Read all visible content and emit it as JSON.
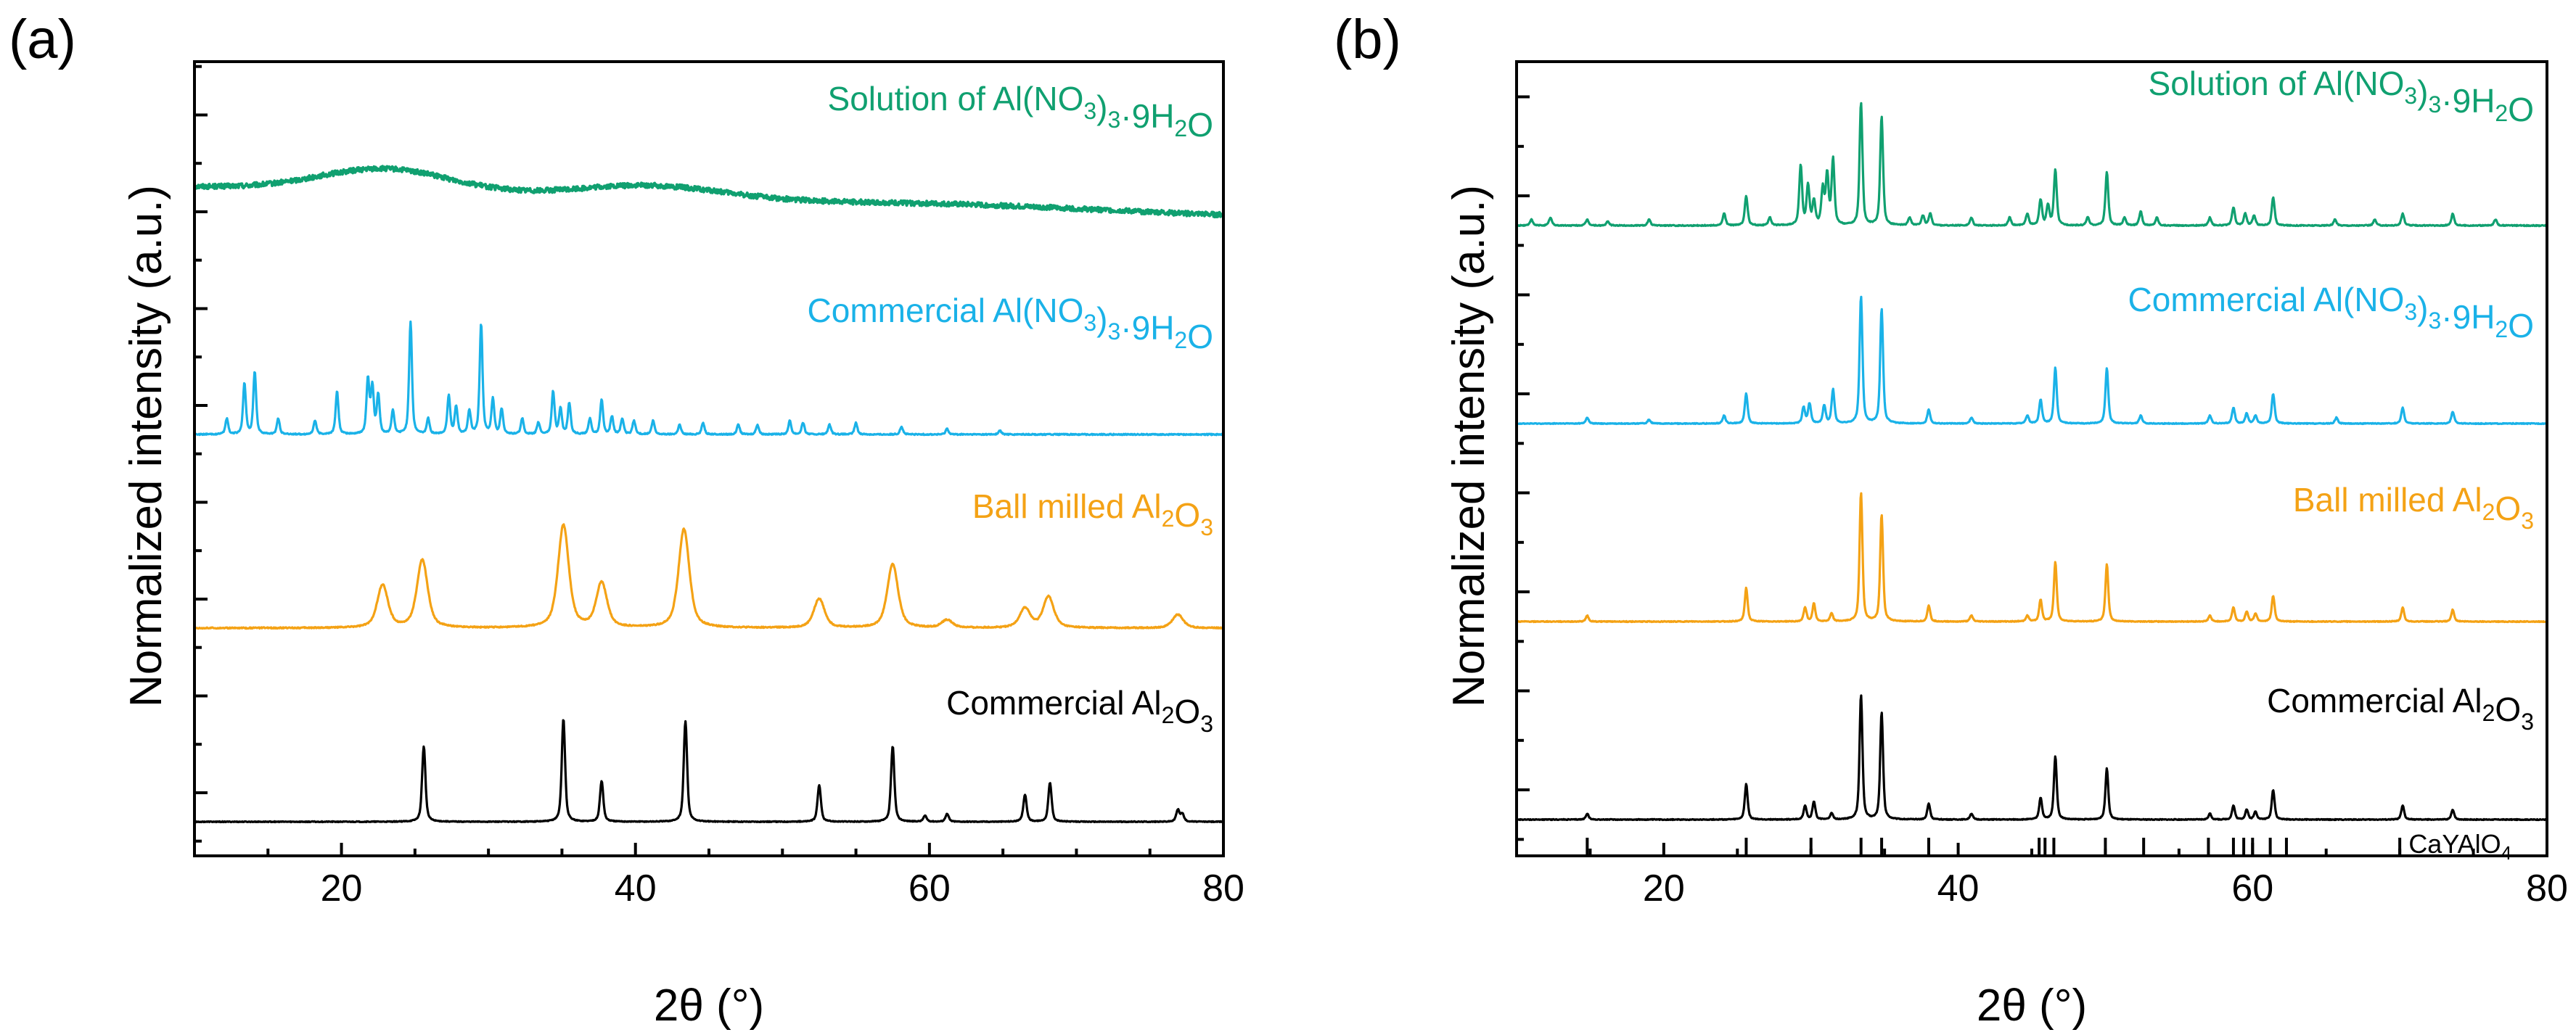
{
  "chart_data": [
    {
      "type": "line",
      "panel_label": "(a)",
      "xlabel": "2θ (°)",
      "ylabel": "Normalized intensity (a.u.)",
      "xlim": [
        10,
        80
      ],
      "xticks": [
        20,
        40,
        60,
        80
      ],
      "yticks_labeled": false,
      "series": [
        {
          "name": "Solution of Al(NO3)3·9H2O",
          "label_main": "Solution of Al(NO",
          "label_sub1": "3",
          "label_mid": ")",
          "label_sub2": "3",
          "label_tail": "·9H",
          "label_sub3": "2",
          "label_end": "O",
          "color": "#10a070",
          "kind": "amorphous",
          "offset": 3.0,
          "baseline_start": 0.28,
          "baseline_end": 0.13,
          "humps": [
            {
              "center": 23,
              "width": 4.5,
              "height": 0.12
            },
            {
              "center": 41,
              "width": 5.0,
              "height": 0.07
            },
            {
              "center": 62,
              "width": 10.0,
              "height": 0.02
            }
          ],
          "noise": 0.025
        },
        {
          "name": "Commercial Al(NO3)3·9H2O",
          "label_main": "Commercial Al(NO",
          "label_sub1": "3",
          "label_mid": ")",
          "label_sub2": "3",
          "label_tail": "·9H",
          "label_sub3": "2",
          "label_end": "O",
          "color": "#1ab2e8",
          "kind": "peaks",
          "offset": 2.0,
          "peak_width": 0.12,
          "noise": 0.006,
          "peaks": [
            [
              12.2,
              0.08
            ],
            [
              13.4,
              0.26
            ],
            [
              14.1,
              0.32
            ],
            [
              15.7,
              0.08
            ],
            [
              18.2,
              0.07
            ],
            [
              19.7,
              0.22
            ],
            [
              21.8,
              0.28
            ],
            [
              22.1,
              0.24
            ],
            [
              22.5,
              0.2
            ],
            [
              23.5,
              0.12
            ],
            [
              24.7,
              0.58
            ],
            [
              25.9,
              0.08
            ],
            [
              27.3,
              0.2
            ],
            [
              27.8,
              0.14
            ],
            [
              28.7,
              0.12
            ],
            [
              29.5,
              0.57
            ],
            [
              30.3,
              0.18
            ],
            [
              30.9,
              0.13
            ],
            [
              32.3,
              0.08
            ],
            [
              33.4,
              0.06
            ],
            [
              34.4,
              0.22
            ],
            [
              34.9,
              0.13
            ],
            [
              35.5,
              0.16
            ],
            [
              36.9,
              0.08
            ],
            [
              37.7,
              0.18
            ],
            [
              38.4,
              0.09
            ],
            [
              39.1,
              0.08
            ],
            [
              39.9,
              0.07
            ],
            [
              41.2,
              0.07
            ],
            [
              43.0,
              0.05
            ],
            [
              44.6,
              0.06
            ],
            [
              47.0,
              0.05
            ],
            [
              48.3,
              0.05
            ],
            [
              50.5,
              0.07
            ],
            [
              51.4,
              0.06
            ],
            [
              53.2,
              0.05
            ],
            [
              55.0,
              0.06
            ],
            [
              58.1,
              0.04
            ],
            [
              61.2,
              0.03
            ],
            [
              64.8,
              0.02
            ]
          ]
        },
        {
          "name": "Ball milled Al2O3",
          "label_main": "Ball milled Al",
          "label_sub1": "2",
          "label_mid": "O",
          "label_sub2": "3",
          "color": "#f4a215",
          "kind": "peaks",
          "offset": 1.0,
          "peak_width": 0.45,
          "noise": 0.006,
          "peaks": [
            [
              22.8,
              0.22
            ],
            [
              25.5,
              0.35
            ],
            [
              35.1,
              0.53
            ],
            [
              37.7,
              0.23
            ],
            [
              43.3,
              0.51
            ],
            [
              52.5,
              0.15
            ],
            [
              57.5,
              0.33
            ],
            [
              61.2,
              0.04
            ],
            [
              66.5,
              0.1
            ],
            [
              68.1,
              0.16
            ],
            [
              76.9,
              0.07
            ]
          ]
        },
        {
          "name": "Commercial Al2O3",
          "label_main": "Commercial Al",
          "label_sub1": "2",
          "label_mid": "O",
          "label_sub2": "3",
          "color": "#000000",
          "kind": "peaks",
          "offset": 0.0,
          "peak_width": 0.14,
          "noise": 0.004,
          "peaks": [
            [
              25.6,
              0.39
            ],
            [
              35.1,
              0.53
            ],
            [
              37.7,
              0.21
            ],
            [
              43.4,
              0.52
            ],
            [
              52.5,
              0.19
            ],
            [
              57.5,
              0.39
            ],
            [
              59.7,
              0.03
            ],
            [
              61.2,
              0.04
            ],
            [
              66.5,
              0.14
            ],
            [
              68.2,
              0.2
            ],
            [
              76.9,
              0.06
            ],
            [
              77.2,
              0.04
            ]
          ]
        }
      ]
    },
    {
      "type": "line",
      "panel_label": "(b)",
      "xlabel": "2θ (°)",
      "ylabel": "Normalized intensity (a.u.)",
      "xlim": [
        10,
        80
      ],
      "xticks": [
        20,
        40,
        60,
        80
      ],
      "yticks_labeled": false,
      "series": [
        {
          "name": "Solution of Al(NO3)3·9H2O",
          "label_main": "Solution of Al(NO",
          "label_sub1": "3",
          "label_mid": ")",
          "label_sub2": "3",
          "label_tail": "·9H",
          "label_sub3": "2",
          "label_end": "O",
          "color": "#10a070",
          "kind": "peaks",
          "offset": 3.0,
          "peak_width": 0.12,
          "noise": 0.005,
          "peaks": [
            [
              11.0,
              0.03
            ],
            [
              12.3,
              0.04
            ],
            [
              14.8,
              0.03
            ],
            [
              16.2,
              0.02
            ],
            [
              19.0,
              0.03
            ],
            [
              24.1,
              0.06
            ],
            [
              25.6,
              0.15
            ],
            [
              27.2,
              0.04
            ],
            [
              29.3,
              0.3
            ],
            [
              29.8,
              0.2
            ],
            [
              30.2,
              0.12
            ],
            [
              30.8,
              0.18
            ],
            [
              31.1,
              0.25
            ],
            [
              31.5,
              0.33
            ],
            [
              33.4,
              0.62
            ],
            [
              34.8,
              0.55
            ],
            [
              36.7,
              0.04
            ],
            [
              37.6,
              0.05
            ],
            [
              38.1,
              0.06
            ],
            [
              40.9,
              0.04
            ],
            [
              43.5,
              0.04
            ],
            [
              44.7,
              0.06
            ],
            [
              45.6,
              0.13
            ],
            [
              46.1,
              0.1
            ],
            [
              46.6,
              0.28
            ],
            [
              48.8,
              0.04
            ],
            [
              50.1,
              0.27
            ],
            [
              51.3,
              0.04
            ],
            [
              52.4,
              0.07
            ],
            [
              53.5,
              0.04
            ],
            [
              57.1,
              0.04
            ],
            [
              58.7,
              0.09
            ],
            [
              59.5,
              0.06
            ],
            [
              60.1,
              0.05
            ],
            [
              61.4,
              0.14
            ],
            [
              65.6,
              0.03
            ],
            [
              68.3,
              0.03
            ],
            [
              70.2,
              0.06
            ],
            [
              73.6,
              0.06
            ],
            [
              76.5,
              0.03
            ]
          ]
        },
        {
          "name": "Commercial Al(NO3)3·9H2O",
          "label_main": "Commercial Al(NO",
          "label_sub1": "3",
          "label_mid": ")",
          "label_sub2": "3",
          "label_tail": "·9H",
          "label_sub3": "2",
          "label_end": "O",
          "color": "#1ab2e8",
          "kind": "peaks",
          "offset": 2.0,
          "peak_width": 0.12,
          "noise": 0.004,
          "peaks": [
            [
              14.8,
              0.03
            ],
            [
              19.0,
              0.02
            ],
            [
              24.1,
              0.04
            ],
            [
              25.6,
              0.15
            ],
            [
              29.5,
              0.08
            ],
            [
              29.9,
              0.1
            ],
            [
              30.9,
              0.09
            ],
            [
              31.5,
              0.17
            ],
            [
              33.4,
              0.64
            ],
            [
              34.8,
              0.58
            ],
            [
              38.0,
              0.07
            ],
            [
              40.9,
              0.03
            ],
            [
              44.7,
              0.04
            ],
            [
              45.6,
              0.12
            ],
            [
              46.6,
              0.28
            ],
            [
              50.1,
              0.28
            ],
            [
              52.4,
              0.04
            ],
            [
              57.1,
              0.04
            ],
            [
              58.7,
              0.08
            ],
            [
              59.6,
              0.05
            ],
            [
              60.2,
              0.04
            ],
            [
              61.4,
              0.15
            ],
            [
              65.7,
              0.03
            ],
            [
              70.2,
              0.08
            ],
            [
              73.6,
              0.06
            ]
          ]
        },
        {
          "name": "Ball milled Al2O3",
          "label_main": "Ball milled Al",
          "label_sub1": "2",
          "label_mid": "O",
          "label_sub2": "3",
          "color": "#f4a215",
          "kind": "peaks",
          "offset": 1.0,
          "peak_width": 0.12,
          "noise": 0.004,
          "peaks": [
            [
              14.8,
              0.03
            ],
            [
              25.6,
              0.17
            ],
            [
              29.6,
              0.07
            ],
            [
              30.2,
              0.09
            ],
            [
              31.4,
              0.04
            ],
            [
              33.4,
              0.65
            ],
            [
              34.8,
              0.54
            ],
            [
              38.0,
              0.08
            ],
            [
              40.9,
              0.03
            ],
            [
              44.7,
              0.03
            ],
            [
              45.6,
              0.11
            ],
            [
              46.6,
              0.3
            ],
            [
              50.1,
              0.29
            ],
            [
              57.1,
              0.03
            ],
            [
              58.7,
              0.07
            ],
            [
              59.6,
              0.05
            ],
            [
              60.2,
              0.04
            ],
            [
              61.4,
              0.13
            ],
            [
              70.2,
              0.07
            ],
            [
              73.6,
              0.06
            ]
          ]
        },
        {
          "name": "Commercial Al2O3",
          "label_main": "Commercial Al",
          "label_sub1": "2",
          "label_mid": "O",
          "label_sub2": "3",
          "color": "#000000",
          "kind": "peaks",
          "offset": 0.0,
          "peak_width": 0.12,
          "noise": 0.004,
          "peaks": [
            [
              14.8,
              0.03
            ],
            [
              25.6,
              0.18
            ],
            [
              29.6,
              0.07
            ],
            [
              30.2,
              0.09
            ],
            [
              31.4,
              0.03
            ],
            [
              33.4,
              0.63
            ],
            [
              34.8,
              0.54
            ],
            [
              38.0,
              0.08
            ],
            [
              40.9,
              0.03
            ],
            [
              45.6,
              0.11
            ],
            [
              46.6,
              0.32
            ],
            [
              50.1,
              0.26
            ],
            [
              57.1,
              0.03
            ],
            [
              58.7,
              0.07
            ],
            [
              59.6,
              0.05
            ],
            [
              60.2,
              0.04
            ],
            [
              61.4,
              0.15
            ],
            [
              70.2,
              0.07
            ],
            [
              73.6,
              0.05
            ]
          ]
        }
      ],
      "reference": {
        "name": "CaYAlO4",
        "label_main": "CaYAlO",
        "label_sub": "4",
        "positions": [
          14.8,
          25.6,
          30.0,
          33.4,
          34.8,
          38.0,
          45.5,
          45.9,
          46.5,
          50.0,
          52.6,
          57.0,
          58.7,
          59.4,
          60.0,
          61.2,
          62.3,
          70.0
        ]
      }
    }
  ]
}
